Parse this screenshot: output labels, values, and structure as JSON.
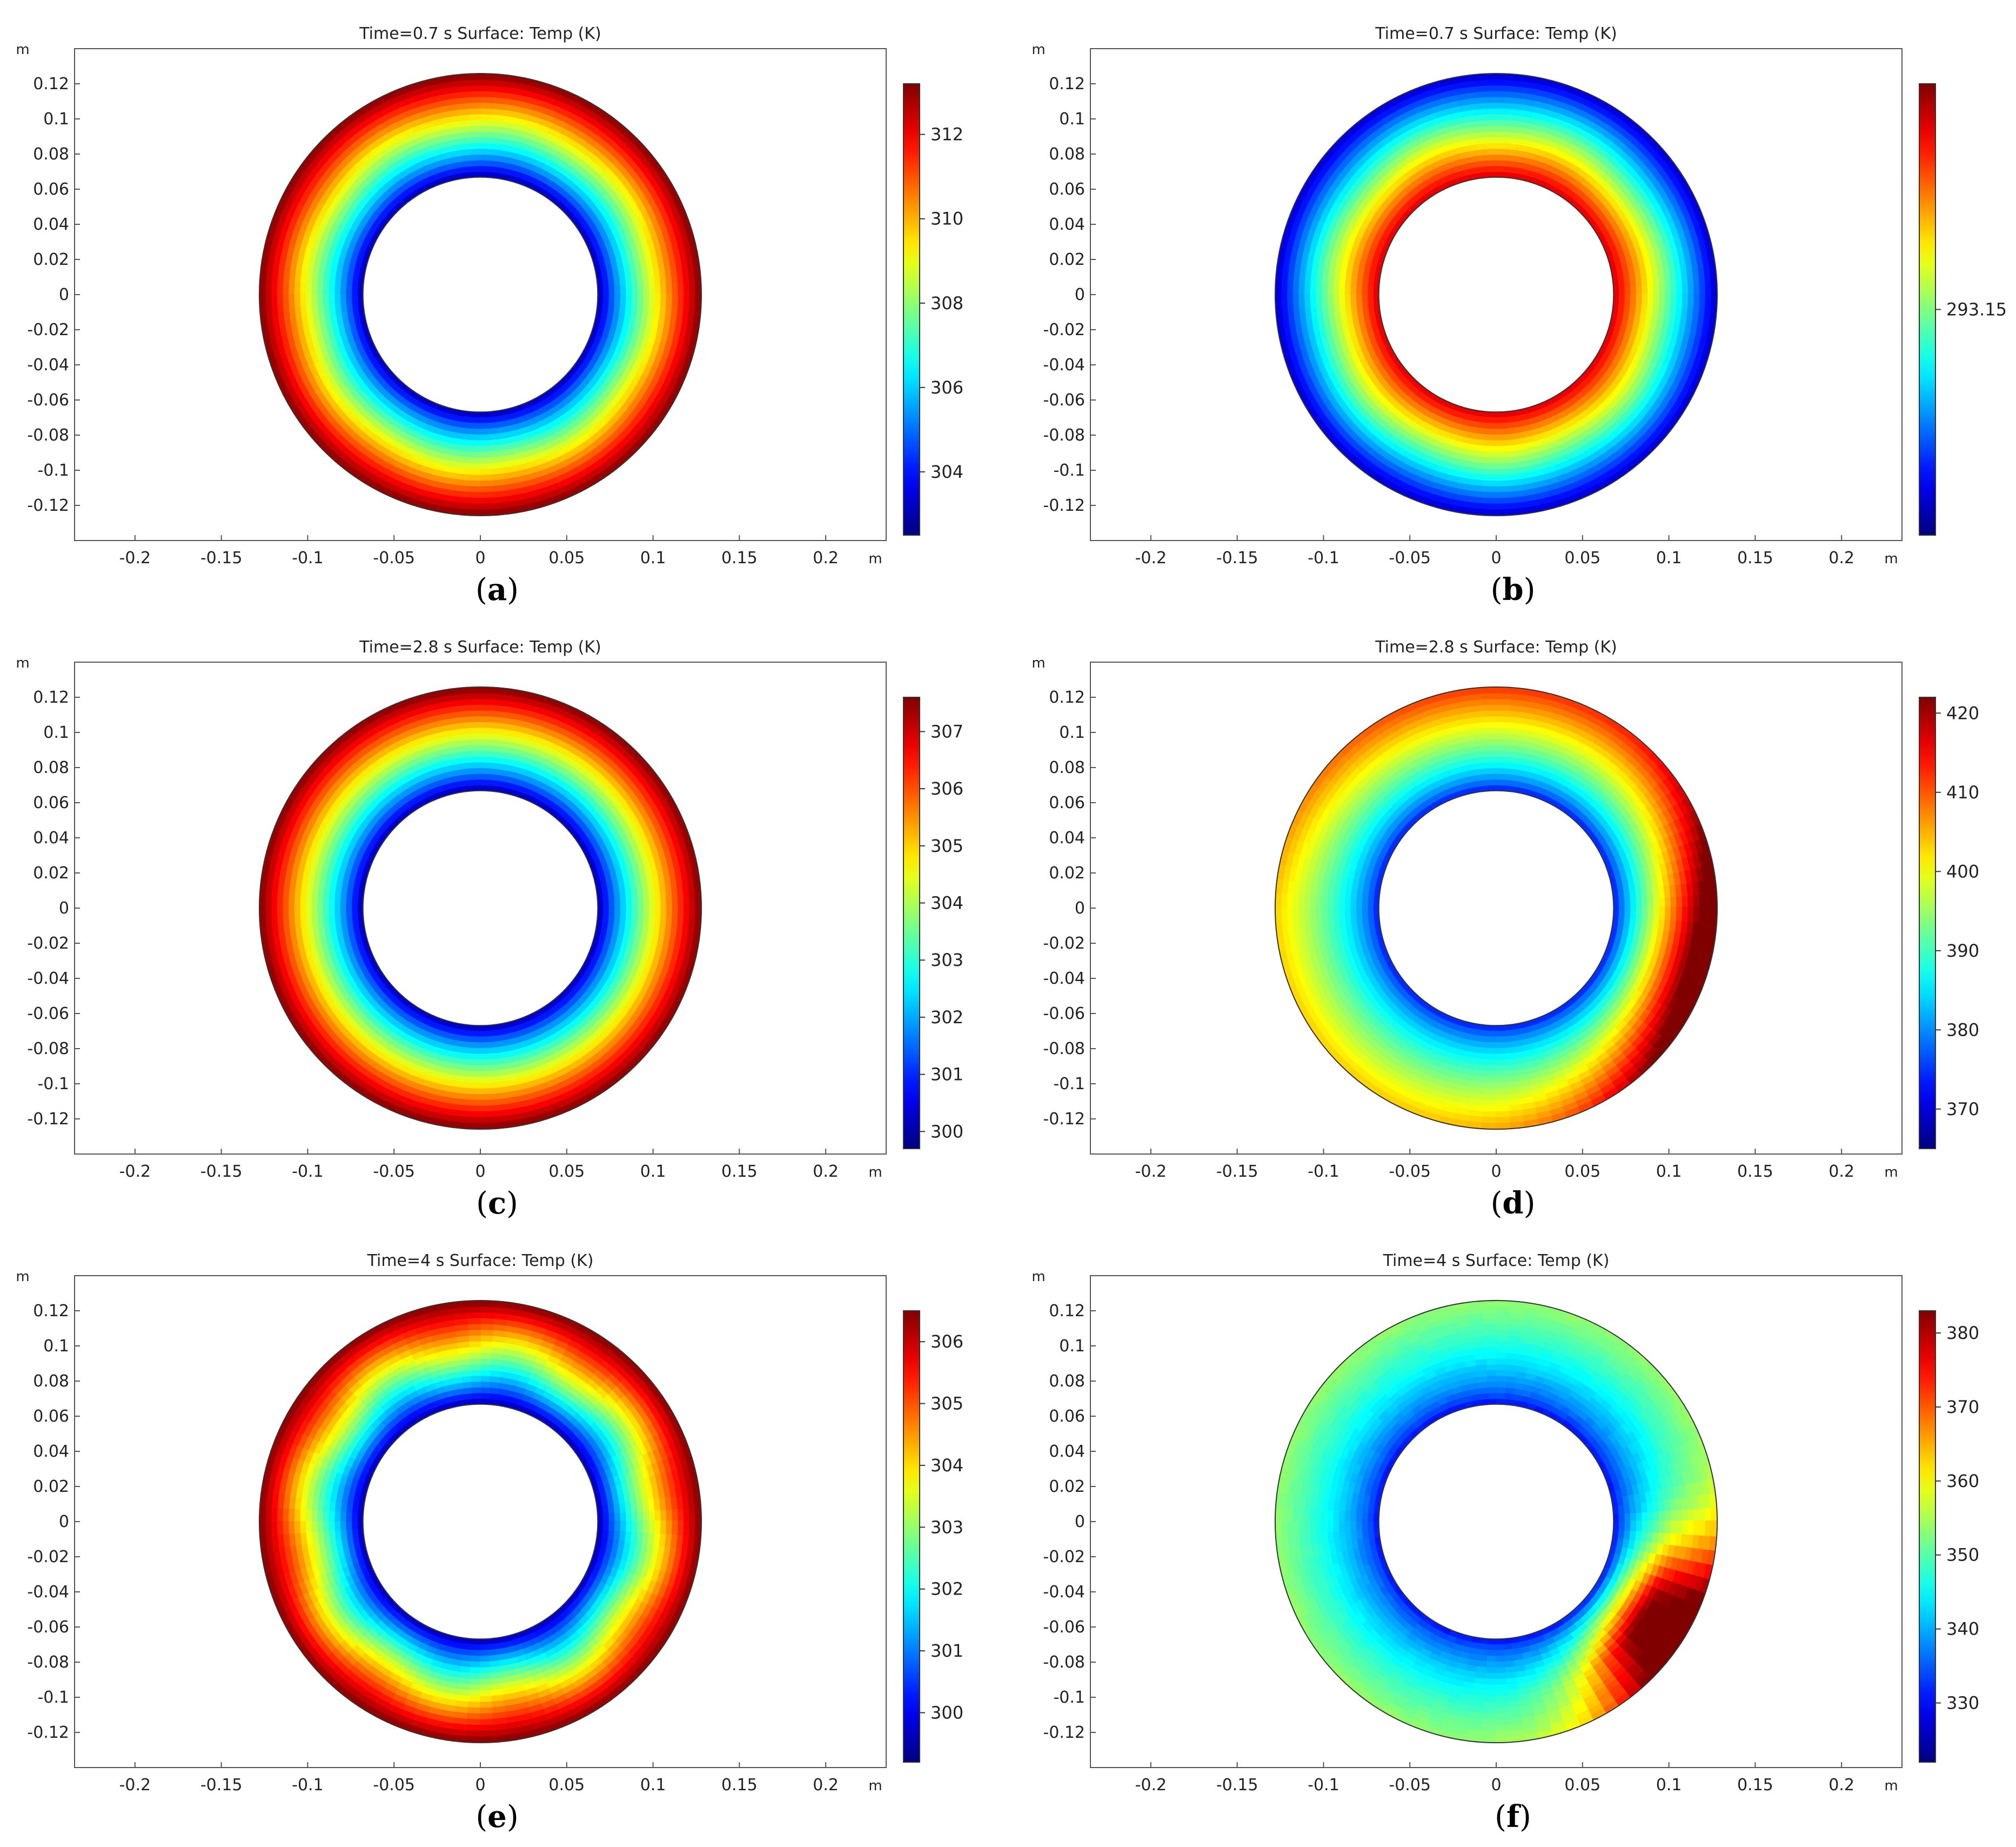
{
  "panels": [
    {
      "id": "a",
      "caption_open": "(",
      "caption_letter": "a",
      "caption_close": ")",
      "title": "Time=0.7 s   Surface: Temp (K)",
      "axis_unit": "m",
      "x_ticks": [
        "-0.2",
        "-0.15",
        "-0.1",
        "-0.05",
        "0",
        "0.05",
        "0.1",
        "0.15",
        "0.2"
      ],
      "y_ticks": [
        "0.12",
        "0.1",
        "0.08",
        "0.06",
        "0.04",
        "0.02",
        "0",
        "-0.02",
        "-0.04",
        "-0.06",
        "-0.08",
        "-0.1",
        "-0.12"
      ],
      "colorbar_ticks": [
        "312",
        "310",
        "308",
        "306",
        "304"
      ],
      "colorbar_range": [
        302.5,
        313.2
      ],
      "field": "inner-cold",
      "waviness": 0.1
    },
    {
      "id": "b",
      "caption_open": "(",
      "caption_letter": "b",
      "caption_close": ")",
      "title": "Time=0.7 s   Surface: Temp (K)",
      "axis_unit": "m",
      "x_ticks": [
        "-0.2",
        "-0.15",
        "-0.1",
        "-0.05",
        "0",
        "0.05",
        "0.1",
        "0.15",
        "0.2"
      ],
      "y_ticks": [
        "0.12",
        "0.1",
        "0.08",
        "0.06",
        "0.04",
        "0.02",
        "0",
        "-0.02",
        "-0.04",
        "-0.06",
        "-0.08",
        "-0.1",
        "-0.12"
      ],
      "colorbar_ticks": [
        "293.15"
      ],
      "colorbar_range": [
        293.0,
        293.3
      ],
      "field": "inner-hot",
      "waviness": 0.12
    },
    {
      "id": "c",
      "caption_open": "(",
      "caption_letter": "c",
      "caption_close": ")",
      "title": "Time=2.8 s   Surface: Temp (K)",
      "axis_unit": "m",
      "x_ticks": [
        "-0.2",
        "-0.15",
        "-0.1",
        "-0.05",
        "0",
        "0.05",
        "0.1",
        "0.15",
        "0.2"
      ],
      "y_ticks": [
        "0.12",
        "0.1",
        "0.08",
        "0.06",
        "0.04",
        "0.02",
        "0",
        "-0.02",
        "-0.04",
        "-0.06",
        "-0.08",
        "-0.1",
        "-0.12"
      ],
      "colorbar_ticks": [
        "307",
        "306",
        "305",
        "304",
        "303",
        "302",
        "301",
        "300"
      ],
      "colorbar_range": [
        299.7,
        307.6
      ],
      "field": "inner-cold",
      "waviness": 0
    },
    {
      "id": "d",
      "caption_open": "(",
      "caption_letter": "d",
      "caption_close": ")",
      "title": "Time=2.8 s   Surface: Temp (K)",
      "axis_unit": "m",
      "x_ticks": [
        "-0.2",
        "-0.15",
        "-0.1",
        "-0.05",
        "0",
        "0.05",
        "0.1",
        "0.15",
        "0.2"
      ],
      "y_ticks": [
        "0.12",
        "0.1",
        "0.08",
        "0.06",
        "0.04",
        "0.02",
        "0",
        "-0.02",
        "-0.04",
        "-0.06",
        "-0.08",
        "-0.1",
        "-0.12"
      ],
      "colorbar_ticks": [
        "420",
        "410",
        "400",
        "390",
        "380",
        "370"
      ],
      "colorbar_range": [
        365,
        422
      ],
      "field": "asym-d",
      "waviness": 0.05
    },
    {
      "id": "e",
      "caption_open": "(",
      "caption_letter": "e",
      "caption_close": ")",
      "title": "Time=4 s   Surface: Temp (K)",
      "axis_unit": "m",
      "x_ticks": [
        "-0.2",
        "-0.15",
        "-0.1",
        "-0.05",
        "0",
        "0.05",
        "0.1",
        "0.15",
        "0.2"
      ],
      "y_ticks": [
        "0.12",
        "0.1",
        "0.08",
        "0.06",
        "0.04",
        "0.02",
        "0",
        "-0.02",
        "-0.04",
        "-0.06",
        "-0.08",
        "-0.1",
        "-0.12"
      ],
      "colorbar_ticks": [
        "306",
        "305",
        "304",
        "303",
        "302",
        "301",
        "300"
      ],
      "colorbar_range": [
        299.2,
        306.5
      ],
      "field": "inner-cold",
      "waviness": 0.35
    },
    {
      "id": "f",
      "caption_open": "(",
      "caption_letter": "f",
      "caption_close": ")",
      "title": "Time=4 s   Surface: Temp (K)",
      "axis_unit": "m",
      "x_ticks": [
        "-0.2",
        "-0.15",
        "-0.1",
        "-0.05",
        "0",
        "0.05",
        "0.1",
        "0.15",
        "0.2"
      ],
      "y_ticks": [
        "0.12",
        "0.1",
        "0.08",
        "0.06",
        "0.04",
        "0.02",
        "0",
        "-0.02",
        "-0.04",
        "-0.06",
        "-0.08",
        "-0.1",
        "-0.12"
      ],
      "colorbar_ticks": [
        "380",
        "370",
        "360",
        "350",
        "340",
        "330"
      ],
      "colorbar_range": [
        322,
        383
      ],
      "field": "asym-f",
      "waviness": 0.2
    }
  ],
  "chart_data": [
    {
      "type": "heatmap",
      "title": "Time=0.7 s   Surface: Temp (K)",
      "xlabel": "m",
      "ylabel": "m",
      "xlim": [
        -0.235,
        0.235
      ],
      "ylim": [
        -0.14,
        0.14
      ],
      "annulus_inner_radius": 0.068,
      "annulus_outer_radius": 0.128,
      "colorbar_label_values": [
        312,
        310,
        308,
        306,
        304
      ],
      "colorbar_range": [
        302.5,
        313.2
      ],
      "pattern": "cold inner edge, hot outer edge"
    },
    {
      "type": "heatmap",
      "title": "Time=0.7 s   Surface: Temp (K)",
      "xlabel": "m",
      "ylabel": "m",
      "xlim": [
        -0.235,
        0.235
      ],
      "ylim": [
        -0.14,
        0.14
      ],
      "annulus_inner_radius": 0.068,
      "annulus_outer_radius": 0.128,
      "colorbar_label_values": [
        293.15
      ],
      "pattern": "hot inner edge, cold outer edge"
    },
    {
      "type": "heatmap",
      "title": "Time=2.8 s   Surface: Temp (K)",
      "xlabel": "m",
      "ylabel": "m",
      "xlim": [
        -0.235,
        0.235
      ],
      "ylim": [
        -0.14,
        0.14
      ],
      "annulus_inner_radius": 0.068,
      "annulus_outer_radius": 0.128,
      "colorbar_label_values": [
        307,
        306,
        305,
        304,
        303,
        302,
        301,
        300
      ],
      "colorbar_range": [
        299.7,
        307.6
      ],
      "pattern": "cold inner edge, hot outer edge"
    },
    {
      "type": "heatmap",
      "title": "Time=2.8 s   Surface: Temp (K)",
      "xlabel": "m",
      "ylabel": "m",
      "xlim": [
        -0.235,
        0.235
      ],
      "ylim": [
        -0.14,
        0.14
      ],
      "annulus_inner_radius": 0.068,
      "annulus_outer_radius": 0.128,
      "colorbar_label_values": [
        420,
        410,
        400,
        390,
        380,
        370
      ],
      "colorbar_range": [
        365,
        422
      ],
      "pattern": "cold inner edge, hot region on right side"
    },
    {
      "type": "heatmap",
      "title": "Time=4 s   Surface: Temp (K)",
      "xlabel": "m",
      "ylabel": "m",
      "xlim": [
        -0.235,
        0.235
      ],
      "ylim": [
        -0.14,
        0.14
      ],
      "annulus_inner_radius": 0.068,
      "annulus_outer_radius": 0.128,
      "colorbar_label_values": [
        306,
        305,
        304,
        303,
        302,
        301,
        300
      ],
      "colorbar_range": [
        299.2,
        306.5
      ],
      "pattern": "cold inner edge, hot wavy outer band"
    },
    {
      "type": "heatmap",
      "title": "Time=4 s   Surface: Temp (K)",
      "xlabel": "m",
      "ylabel": "m",
      "xlim": [
        -0.235,
        0.235
      ],
      "ylim": [
        -0.14,
        0.14
      ],
      "annulus_inner_radius": 0.068,
      "annulus_outer_radius": 0.128,
      "colorbar_label_values": [
        380,
        370,
        360,
        350,
        340,
        330
      ],
      "colorbar_range": [
        322,
        383
      ],
      "pattern": "cold inner edge, hot region lower right"
    }
  ]
}
